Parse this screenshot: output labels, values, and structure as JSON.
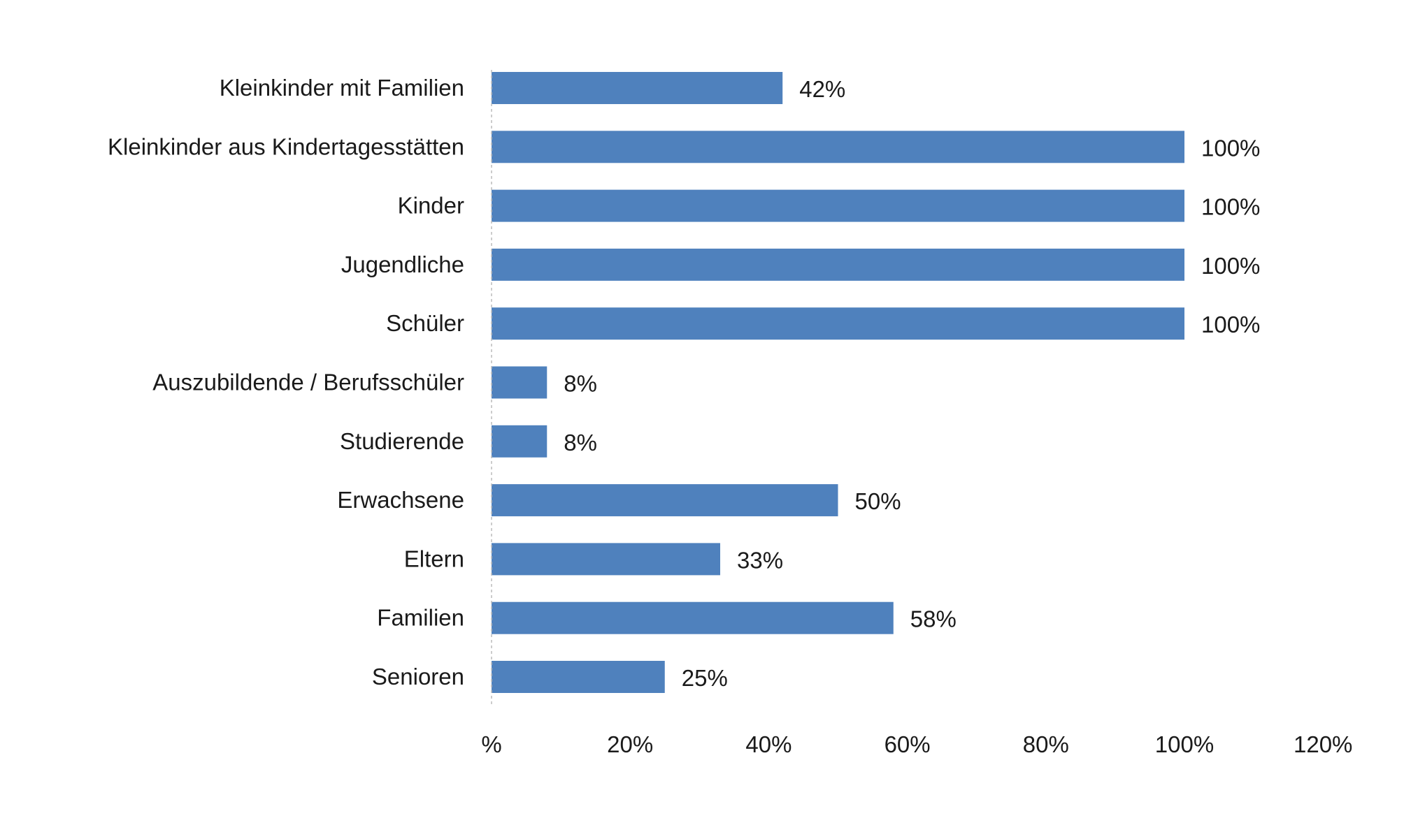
{
  "chart_data": {
    "type": "bar",
    "orientation": "horizontal",
    "categories": [
      "Kleinkinder mit Familien",
      "Kleinkinder aus Kindertagesstätten",
      "Kinder",
      "Jugendliche",
      "Schüler",
      "Auszubildende / Berufsschüler",
      "Studierende",
      "Erwachsene",
      "Eltern",
      "Familien",
      "Senioren"
    ],
    "values": [
      42,
      100,
      100,
      100,
      100,
      8,
      8,
      50,
      33,
      58,
      25
    ],
    "data_labels": [
      "42%",
      "100%",
      "100%",
      "100%",
      "100%",
      "8%",
      "8%",
      "50%",
      "33%",
      "58%",
      "25%"
    ],
    "xlim": [
      0,
      120
    ],
    "x_ticks": [
      0,
      20,
      40,
      60,
      80,
      100,
      120
    ],
    "x_tick_labels": [
      "%",
      "20%",
      "40%",
      "60%",
      "80%",
      "100%",
      "120%"
    ],
    "grid": false,
    "bar_color": "#4F81BD"
  }
}
